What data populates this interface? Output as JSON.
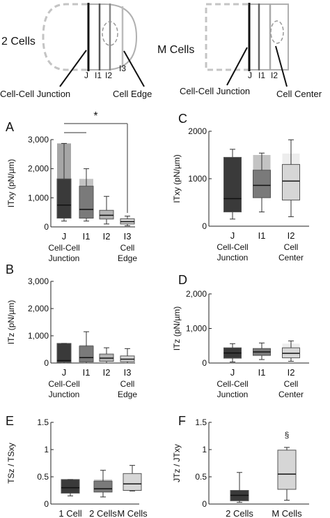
{
  "diagrams": [
    {
      "title": "2 Cells",
      "labels": [
        "J",
        "I1",
        "I2",
        "I3"
      ],
      "annotations": [
        "Cell-Cell Junction",
        "Cell Edge"
      ]
    },
    {
      "title": "M Cells",
      "labels": [
        "J",
        "I1",
        "I2"
      ],
      "annotations": [
        "Cell-Cell Junction",
        "Cell Center"
      ]
    }
  ],
  "colors": {
    "dark": "#3a3a3a",
    "mid": "#7a7a7a",
    "light": "#b4b4b4",
    "lighter": "#d6d6d6"
  },
  "chart_data": [
    {
      "id": "A",
      "type": "box",
      "panel_label": "A",
      "ylabel": "ITxy (pN/µm)",
      "ylim": [
        0,
        3000
      ],
      "yticks": [
        "0",
        "1,000",
        "2,000",
        "3,000"
      ],
      "categories": [
        "J",
        "I1",
        "I2",
        "I3"
      ],
      "group_labels": [
        [
          "Cell-Cell",
          "Junction"
        ],
        [
          "Cell",
          "Edge"
        ]
      ],
      "significance": "*",
      "boxes": [
        {
          "min": 200,
          "q1": 300,
          "median": 750,
          "q3": 1650,
          "max": 2870,
          "shade_top": 2870
        },
        {
          "min": 200,
          "q1": 300,
          "median": 600,
          "q3": 1400,
          "max": 2000,
          "shade_top": 1650
        },
        {
          "min": 100,
          "q1": 270,
          "median": 400,
          "q3": 570,
          "max": 1050,
          "shade_top": 570
        },
        {
          "min": 40,
          "q1": 100,
          "median": 180,
          "q3": 280,
          "max": 370,
          "shade_top": 280
        }
      ]
    },
    {
      "id": "C",
      "type": "box",
      "panel_label": "C",
      "ylabel": "ITxy (pN/µm)",
      "ylim": [
        0,
        2000
      ],
      "yticks": [
        "0",
        "1000",
        "2000"
      ],
      "categories": [
        "J",
        "I1",
        "I2"
      ],
      "group_labels": [
        [
          "Cell-Cell",
          "Junction"
        ],
        [
          "Cell",
          "Center"
        ]
      ],
      "boxes": [
        {
          "min": 150,
          "q1": 300,
          "median": 580,
          "q3": 1450,
          "max": 1620,
          "shade_top": 1450
        },
        {
          "min": 300,
          "q1": 600,
          "median": 860,
          "q3": 1180,
          "max": 1540,
          "shade_top": 1500
        },
        {
          "min": 200,
          "q1": 550,
          "median": 950,
          "q3": 1300,
          "max": 1820,
          "shade_top": 1530
        }
      ]
    },
    {
      "id": "B",
      "type": "box",
      "panel_label": "B",
      "ylabel": "ITz (pN/µm)",
      "ylim": [
        0,
        3000
      ],
      "yticks": [
        "0",
        "1,000",
        "2,000",
        "3,000"
      ],
      "categories": [
        "J",
        "I1",
        "I2",
        "I3"
      ],
      "group_labels": [
        [
          "Cell-Cell",
          "Junction"
        ],
        [
          "Cell",
          "Edge"
        ]
      ],
      "boxes": [
        {
          "min": 0,
          "q1": 30,
          "median": 90,
          "q3": 720,
          "max": 720,
          "shade_top": 720
        },
        {
          "min": 0,
          "q1": 40,
          "median": 200,
          "q3": 620,
          "max": 1150,
          "shade_top": 660
        },
        {
          "min": 0,
          "q1": 60,
          "median": 180,
          "q3": 330,
          "max": 560,
          "shade_top": 330
        },
        {
          "min": 0,
          "q1": 50,
          "median": 140,
          "q3": 260,
          "max": 530,
          "shade_top": 260
        }
      ]
    },
    {
      "id": "D",
      "type": "box",
      "panel_label": "D",
      "ylabel": "ITz (pN/µm)",
      "ylim": [
        0,
        2000
      ],
      "yticks": [
        "0",
        "1,000",
        "2,000"
      ],
      "categories": [
        "J",
        "I1",
        "I2"
      ],
      "group_labels": [
        [
          "Cell-Cell",
          "Junction"
        ],
        [
          "Cell",
          "Center"
        ]
      ],
      "boxes": [
        {
          "min": 30,
          "q1": 140,
          "median": 290,
          "q3": 440,
          "max": 560,
          "shade_top": 440
        },
        {
          "min": 100,
          "q1": 220,
          "median": 320,
          "q3": 420,
          "max": 580,
          "shade_top": 420
        },
        {
          "min": 50,
          "q1": 150,
          "median": 280,
          "q3": 440,
          "max": 640,
          "shade_top": 560
        }
      ]
    },
    {
      "id": "E",
      "type": "box",
      "panel_label": "E",
      "ylabel": "TSz / TSxy",
      "ylim": [
        0,
        1.5
      ],
      "yticks": [
        "0",
        "0.5",
        "1",
        "1.5"
      ],
      "categories": [
        "1 Cell",
        "2 Cells",
        "M Cells"
      ],
      "boxes": [
        {
          "min": 0.15,
          "q1": 0.2,
          "median": 0.3,
          "q3": 0.45,
          "max": 0.45,
          "shade_top": 0.45
        },
        {
          "min": 0.13,
          "q1": 0.22,
          "median": 0.28,
          "q3": 0.42,
          "max": 0.62,
          "shade_top": 0.45
        },
        {
          "min": 0.24,
          "q1": 0.25,
          "median": 0.37,
          "q3": 0.56,
          "max": 0.71,
          "shade_top": 0.56
        }
      ]
    },
    {
      "id": "F",
      "type": "box",
      "panel_label": "F",
      "ylabel": "JTz / JTxy",
      "ylim": [
        0,
        1.5
      ],
      "yticks": [
        "0",
        "0.5",
        "1",
        "1.5"
      ],
      "categories": [
        "2 Cells",
        "M Cells"
      ],
      "significance": "§",
      "boxes": [
        {
          "min": 0.03,
          "q1": 0.06,
          "median": 0.16,
          "q3": 0.25,
          "max": 0.58,
          "shade_top": 0.25
        },
        {
          "min": 0.07,
          "q1": 0.27,
          "median": 0.55,
          "q3": 0.99,
          "max": 1.04,
          "shade_top": 0.99
        }
      ]
    }
  ]
}
